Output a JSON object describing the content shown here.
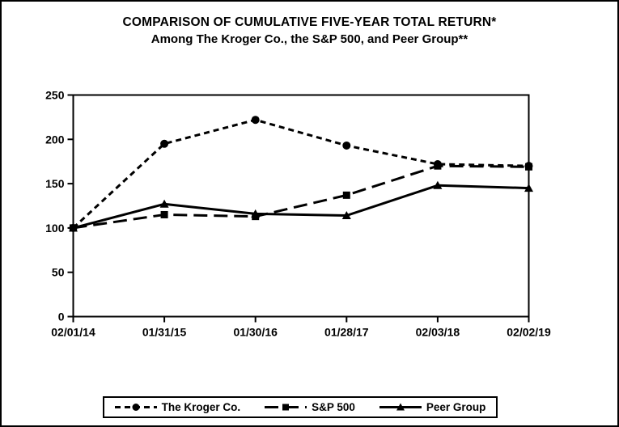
{
  "title": {
    "line1": "COMPARISON OF CUMULATIVE FIVE-YEAR TOTAL RETURN*",
    "line2": "Among The Kroger Co., the S&P 500, and Peer Group**"
  },
  "colors": {
    "foreground": "#000000",
    "background": "#ffffff"
  },
  "chart_data": {
    "type": "line",
    "title": "COMPARISON OF CUMULATIVE FIVE-YEAR TOTAL RETURN*",
    "subtitle": "Among The Kroger Co., the S&P 500, and Peer Group**",
    "categories": [
      "02/01/14",
      "01/31/15",
      "01/30/16",
      "01/28/17",
      "02/03/18",
      "02/02/19"
    ],
    "series": [
      {
        "name": "The Kroger Co.",
        "values": [
          100,
          195,
          222,
          193,
          172,
          170
        ],
        "line_style": "short-dash",
        "marker": "circle"
      },
      {
        "name": "S&P 500",
        "values": [
          100,
          115,
          113,
          137,
          170,
          169
        ],
        "line_style": "long-dash",
        "marker": "square"
      },
      {
        "name": "Peer Group",
        "values": [
          100,
          127,
          116,
          114,
          148,
          145
        ],
        "line_style": "solid",
        "marker": "triangle"
      }
    ],
    "xlabel": "",
    "ylabel": "",
    "ylim": [
      0,
      250
    ],
    "y_ticks": [
      0,
      50,
      100,
      150,
      200,
      250
    ],
    "grid": false,
    "legend_position": "bottom",
    "plot_border": true
  }
}
